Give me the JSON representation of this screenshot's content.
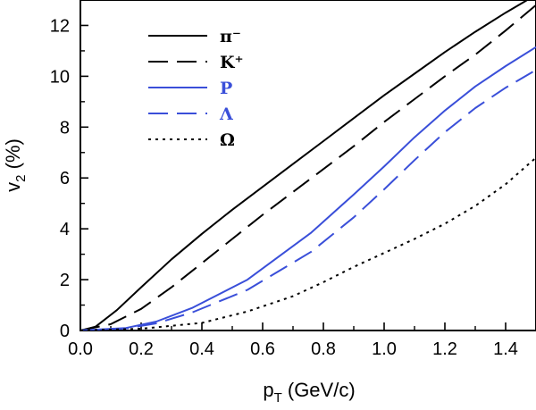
{
  "chart_data": {
    "type": "line",
    "xlabel": {
      "main": "p",
      "sub": "T",
      "rest": " (GeV/c)"
    },
    "ylabel": {
      "main": "v",
      "sub": "2",
      "rest": " (%)"
    },
    "xlim": [
      0.0,
      1.5
    ],
    "ylim": [
      0,
      13
    ],
    "xticks": [
      "0.0",
      "0.2",
      "0.4",
      "0.6",
      "0.8",
      "1.0",
      "1.2",
      "1.4"
    ],
    "yticks": [
      "0",
      "2",
      "4",
      "6",
      "8",
      "10",
      "12"
    ],
    "xtick_values": [
      0.0,
      0.2,
      0.4,
      0.6,
      0.8,
      1.0,
      1.2,
      1.4
    ],
    "ytick_values": [
      0,
      2,
      4,
      6,
      8,
      10,
      12
    ],
    "legend_position": "top-left",
    "series": [
      {
        "name": "π⁻",
        "color": "#000000",
        "dash": "solid",
        "points": [
          [
            0.0,
            0.0
          ],
          [
            0.05,
            0.15
          ],
          [
            0.12,
            0.8
          ],
          [
            0.2,
            1.7
          ],
          [
            0.3,
            2.8
          ],
          [
            0.4,
            3.8
          ],
          [
            0.5,
            4.75
          ],
          [
            0.6,
            5.65
          ],
          [
            0.7,
            6.55
          ],
          [
            0.8,
            7.45
          ],
          [
            0.9,
            8.35
          ],
          [
            1.0,
            9.25
          ],
          [
            1.1,
            10.1
          ],
          [
            1.2,
            10.95
          ],
          [
            1.3,
            11.75
          ],
          [
            1.4,
            12.5
          ],
          [
            1.5,
            13.2
          ]
        ]
      },
      {
        "name": "K⁺",
        "color": "#000000",
        "dash": "dashed",
        "points": [
          [
            0.0,
            0.0
          ],
          [
            0.1,
            0.25
          ],
          [
            0.2,
            0.85
          ],
          [
            0.3,
            1.7
          ],
          [
            0.4,
            2.65
          ],
          [
            0.5,
            3.6
          ],
          [
            0.6,
            4.55
          ],
          [
            0.7,
            5.45
          ],
          [
            0.8,
            6.35
          ],
          [
            0.9,
            7.25
          ],
          [
            1.0,
            8.2
          ],
          [
            1.1,
            9.1
          ],
          [
            1.2,
            10.0
          ],
          [
            1.3,
            10.85
          ],
          [
            1.4,
            11.8
          ],
          [
            1.5,
            12.8
          ]
        ]
      },
      {
        "name": "P",
        "color": "#3a4fd9",
        "dash": "solid",
        "points": [
          [
            0.0,
            0.0
          ],
          [
            0.15,
            0.1
          ],
          [
            0.25,
            0.35
          ],
          [
            0.37,
            0.9
          ],
          [
            0.55,
            2.0
          ],
          [
            0.76,
            3.85
          ],
          [
            0.9,
            5.35
          ],
          [
            1.0,
            6.45
          ],
          [
            1.1,
            7.6
          ],
          [
            1.2,
            8.65
          ],
          [
            1.3,
            9.6
          ],
          [
            1.4,
            10.4
          ],
          [
            1.5,
            11.15
          ]
        ]
      },
      {
        "name": "Λ",
        "color": "#3a4fd9",
        "dash": "dashed",
        "points": [
          [
            0.0,
            0.0
          ],
          [
            0.15,
            0.08
          ],
          [
            0.25,
            0.28
          ],
          [
            0.37,
            0.72
          ],
          [
            0.55,
            1.6
          ],
          [
            0.76,
            3.1
          ],
          [
            0.9,
            4.45
          ],
          [
            1.0,
            5.55
          ],
          [
            1.1,
            6.7
          ],
          [
            1.2,
            7.8
          ],
          [
            1.3,
            8.75
          ],
          [
            1.4,
            9.55
          ],
          [
            1.5,
            10.25
          ]
        ]
      },
      {
        "name": "Ω",
        "color": "#000000",
        "dash": "dotted",
        "points": [
          [
            0.0,
            0.0
          ],
          [
            0.2,
            0.07
          ],
          [
            0.4,
            0.3
          ],
          [
            0.55,
            0.75
          ],
          [
            0.7,
            1.35
          ],
          [
            0.8,
            1.9
          ],
          [
            0.9,
            2.5
          ],
          [
            1.0,
            3.05
          ],
          [
            1.1,
            3.6
          ],
          [
            1.2,
            4.2
          ],
          [
            1.3,
            4.9
          ],
          [
            1.4,
            5.75
          ],
          [
            1.5,
            6.8
          ]
        ]
      }
    ]
  }
}
